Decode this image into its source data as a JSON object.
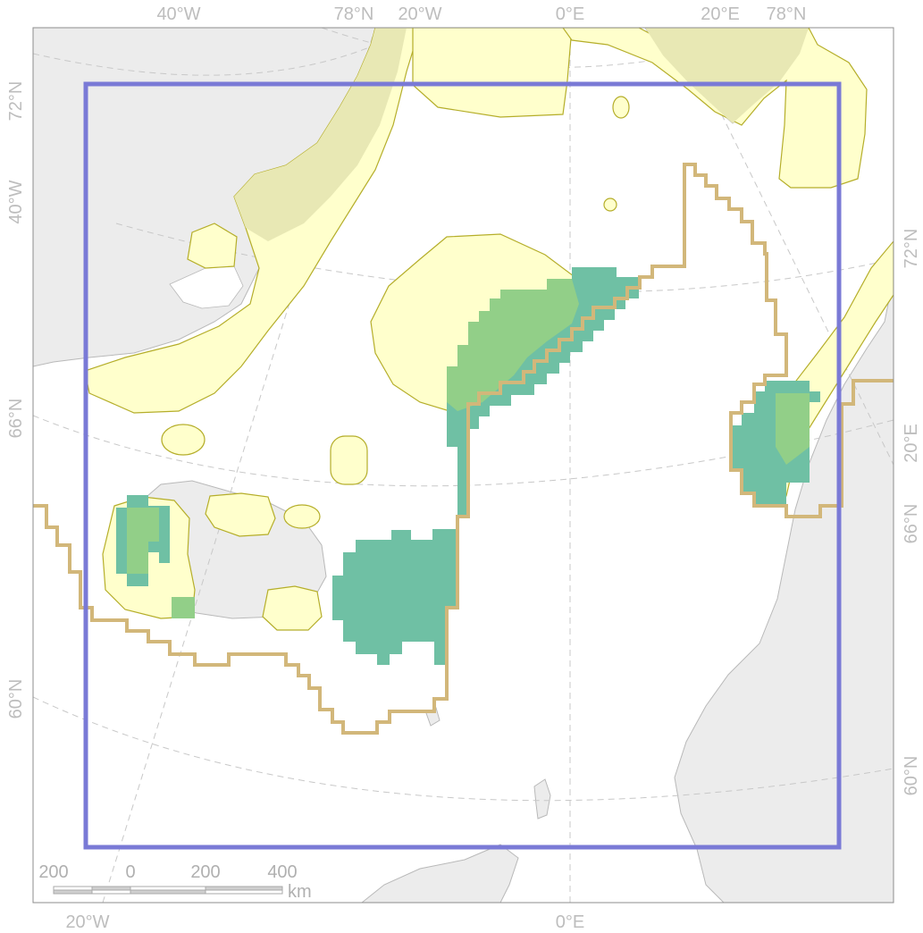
{
  "map": {
    "graticule_labels": {
      "top": [
        "40°W",
        "78°N",
        "20°W",
        "0°E",
        "20°E",
        "78°N"
      ],
      "bottom": [
        "20°W",
        "0°E"
      ],
      "left": [
        "72°N",
        "40°W",
        "66°N",
        "60°N"
      ],
      "right": [
        "72°N",
        "20°E",
        "66°N",
        "60°N"
      ]
    },
    "scale_bar": {
      "ticks": [
        "200",
        "0",
        "200",
        "400"
      ],
      "unit": "km"
    },
    "colors": {
      "land": "#ececec",
      "land_outline": "#b9b9b9",
      "distribution_range": "#ffffcc",
      "range_outline": "#b5ae2a",
      "coastal_overlap": "#e8e8b4",
      "habitat_cells_teal": "#6fc0a4",
      "habitat_cells_green": "#92cf88",
      "boundary_line": "#d2b77a",
      "study_area": "#7a7ad6",
      "graticule": "#c8c8c8"
    }
  }
}
